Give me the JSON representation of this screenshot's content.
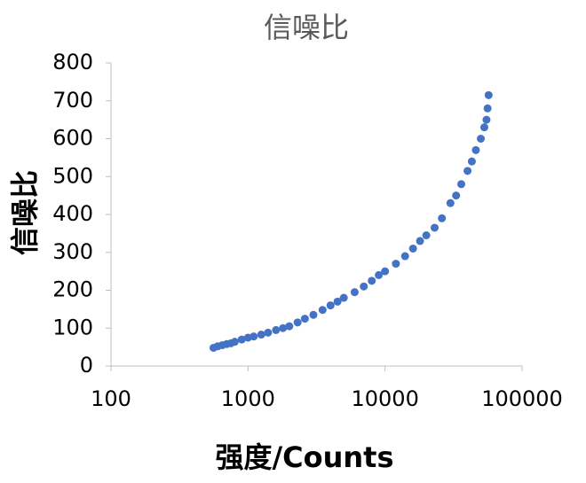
{
  "chart_data": {
    "type": "scatter",
    "title": "信噪比",
    "x_label": "强度/Counts",
    "y_label": "信噪比",
    "x_scale": "log",
    "xlim": [
      100,
      100000
    ],
    "xticks": [
      100,
      1000,
      10000,
      100000
    ],
    "ylim": [
      0,
      800
    ],
    "yticks": [
      0,
      100,
      200,
      300,
      400,
      500,
      600,
      700,
      800
    ],
    "grid": false,
    "color": "#4472c4",
    "x": [
      560,
      600,
      650,
      700,
      750,
      800,
      900,
      1000,
      1100,
      1250,
      1400,
      1600,
      1800,
      2000,
      2300,
      2600,
      3000,
      3500,
      4000,
      4500,
      5000,
      6000,
      7000,
      8000,
      9000,
      10000,
      12000,
      14000,
      16000,
      18000,
      20000,
      23000,
      26000,
      30000,
      33000,
      36000,
      40000,
      43000,
      46000,
      50000,
      53000,
      55000,
      56000,
      57000
    ],
    "values": [
      48,
      52,
      55,
      58,
      60,
      64,
      70,
      75,
      78,
      83,
      88,
      95,
      100,
      105,
      115,
      125,
      135,
      148,
      160,
      170,
      180,
      195,
      210,
      225,
      240,
      250,
      270,
      290,
      310,
      330,
      345,
      365,
      390,
      430,
      450,
      480,
      515,
      540,
      570,
      600,
      630,
      650,
      680,
      715
    ]
  }
}
